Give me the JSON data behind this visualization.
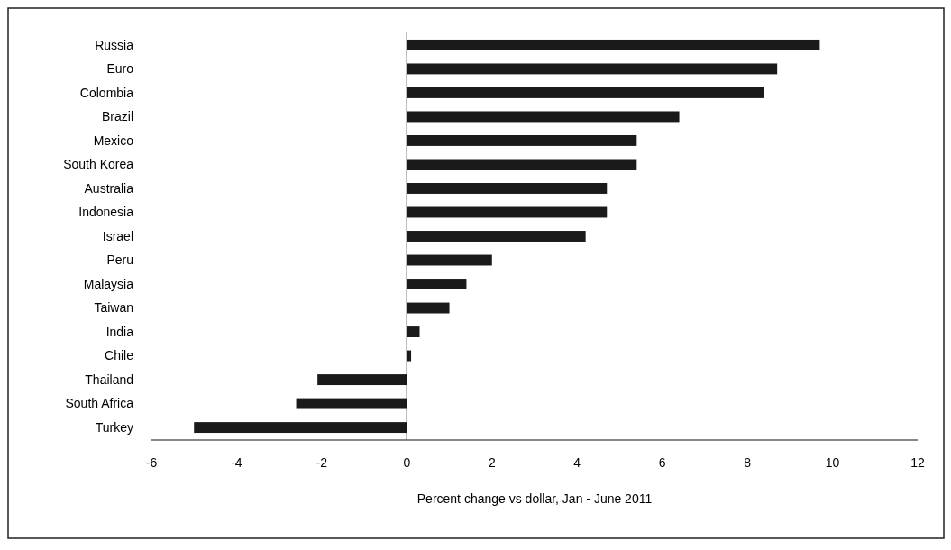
{
  "chart_data": {
    "type": "bar",
    "orientation": "horizontal",
    "xlabel": "Percent change vs dollar, Jan - June 2011",
    "categories": [
      "Russia",
      "Euro",
      "Colombia",
      "Brazil",
      "Mexico",
      "South Korea",
      "Australia",
      "Indonesia",
      "Israel",
      "Peru",
      "Malaysia",
      "Taiwan",
      "India",
      "Chile",
      "Thailand",
      "South Africa",
      "Turkey"
    ],
    "values": [
      9.7,
      8.7,
      8.4,
      6.4,
      5.4,
      5.4,
      4.7,
      4.7,
      4.2,
      2.0,
      1.4,
      1.0,
      0.3,
      0.1,
      -2.1,
      -2.6,
      -5.0
    ],
    "color": "#1a1a1a",
    "xlim": [
      -6,
      12
    ],
    "xticks": [
      -6,
      -4,
      -2,
      0,
      2,
      4,
      6,
      8,
      10,
      12
    ]
  }
}
